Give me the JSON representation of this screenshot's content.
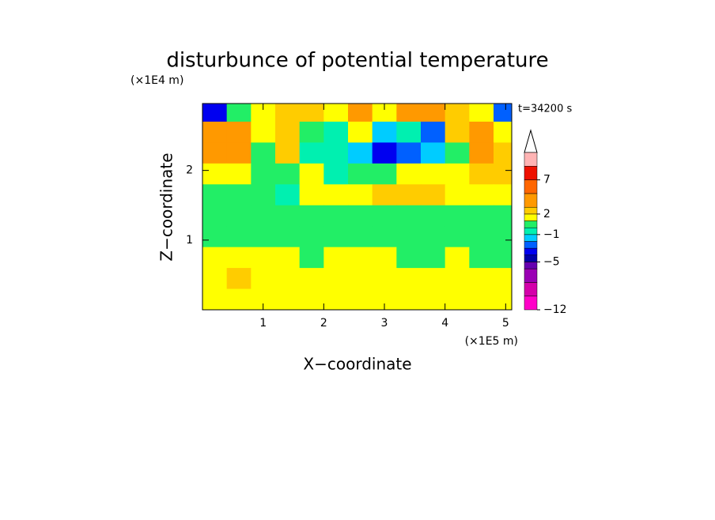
{
  "chart_data": {
    "type": "contourf",
    "title": "disturbunce of potential temperature",
    "x_label": "X−coordinate",
    "y_label": "Z−coordinate",
    "x_unit": "(×1E5 m)",
    "y_unit": "(×1E4 m)",
    "time_label": "t=34200 s",
    "xlim": [
      0,
      5.1
    ],
    "ylim": [
      0,
      2.96
    ],
    "xticks": [
      1,
      2,
      3,
      4,
      5
    ],
    "yticks": [
      1,
      2
    ],
    "x": [
      0.2,
      0.6,
      1.0,
      1.4,
      1.8,
      2.2,
      2.6,
      3.0,
      3.4,
      3.8,
      4.2,
      4.6,
      5.0
    ],
    "y": [
      2.85,
      2.55,
      2.25,
      1.95,
      1.65,
      1.35,
      1.05,
      0.75,
      0.45,
      0.15
    ],
    "z": [
      [
        -4,
        0,
        1,
        2,
        2,
        1,
        3,
        1,
        4,
        4,
        2,
        1,
        -3
      ],
      [
        3,
        3,
        1,
        2,
        0,
        -1,
        1,
        -2,
        -1,
        -3,
        2,
        3,
        1
      ],
      [
        4,
        3,
        0,
        2,
        -1,
        -1,
        -2,
        -4,
        -3,
        -2,
        0,
        3,
        2
      ],
      [
        1,
        1,
        0,
        0,
        1,
        -1,
        0,
        0,
        1,
        1,
        1,
        2,
        2
      ],
      [
        0,
        0,
        0,
        -1,
        1,
        1,
        1,
        2,
        2,
        2,
        1,
        1,
        1
      ],
      [
        0,
        0,
        0,
        0,
        0,
        0,
        0,
        0,
        0,
        0,
        0,
        0,
        0
      ],
      [
        0,
        0,
        0,
        0,
        0,
        0,
        0,
        0,
        0,
        0,
        0,
        0,
        0
      ],
      [
        1,
        1,
        1,
        1,
        0,
        1,
        1,
        1,
        0,
        0,
        1,
        0,
        0
      ],
      [
        1,
        2,
        1,
        1,
        1,
        1,
        1,
        1,
        1,
        1,
        1,
        1,
        1
      ],
      [
        1,
        1,
        1,
        1,
        1,
        1,
        1,
        1,
        1,
        1,
        1,
        1,
        1
      ]
    ],
    "colorbar": {
      "levels": [
        -12,
        -10,
        -8,
        -6,
        -5,
        -4,
        -3,
        -2,
        -1,
        0,
        1,
        2,
        3,
        5,
        7,
        9,
        11
      ],
      "colors": [
        "#ff00c8",
        "#d400aa",
        "#9a00b4",
        "#6600b0",
        "#0000a8",
        "#0000f0",
        "#0060ff",
        "#00ccff",
        "#00f0b0",
        "#22ee66",
        "#ffff00",
        "#ffcc00",
        "#ff9900",
        "#ff6600",
        "#ee1100",
        "#ffb4b4"
      ],
      "ticks": [
        {
          "value": -12,
          "label": "−12"
        },
        {
          "value": -5,
          "label": "−5"
        },
        {
          "value": -1,
          "label": "−1"
        },
        2,
        7
      ]
    }
  }
}
